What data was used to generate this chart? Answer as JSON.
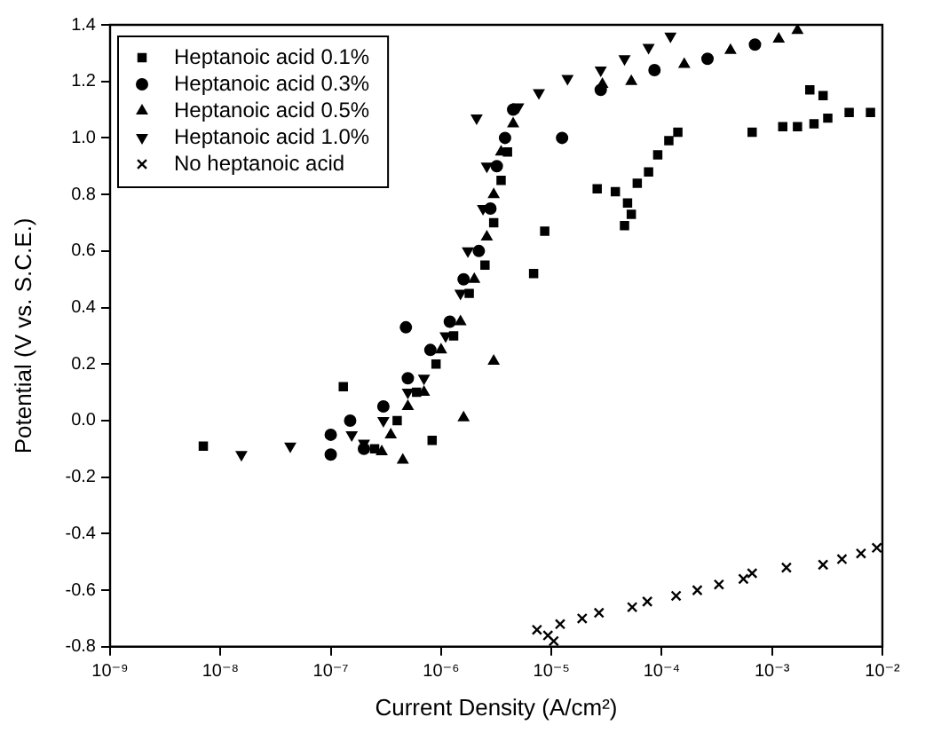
{
  "chart_data": {
    "type": "scatter",
    "xlabel": "Current Density (A/cm²)",
    "ylabel": "Potential (V vs. S.C.E.)",
    "log": "x",
    "xlim": [
      1e-09,
      0.01
    ],
    "xticks": [
      {
        "value": 1e-09,
        "label": "10⁻⁹"
      },
      {
        "value": 1e-08,
        "label": "10⁻⁸"
      },
      {
        "value": 1e-07,
        "label": "10⁻⁷"
      },
      {
        "value": 1e-06,
        "label": "10⁻⁶"
      },
      {
        "value": 1e-05,
        "label": "10⁻⁵"
      },
      {
        "value": 0.0001,
        "label": "10⁻⁴"
      },
      {
        "value": 0.001,
        "label": "10⁻³"
      },
      {
        "value": 0.01,
        "label": "10⁻²"
      }
    ],
    "ylim": [
      -0.8,
      1.4
    ],
    "yticks": [
      {
        "value": -0.8,
        "label": "-0.8"
      },
      {
        "value": -0.6,
        "label": "-0.6"
      },
      {
        "value": -0.4,
        "label": "-0.4"
      },
      {
        "value": -0.2,
        "label": "-0.2"
      },
      {
        "value": 0,
        "label": "0.0"
      },
      {
        "value": 0.2,
        "label": "0.2"
      },
      {
        "value": 0.4,
        "label": "0.4"
      },
      {
        "value": 0.6,
        "label": "0.6"
      },
      {
        "value": 0.8,
        "label": "0.8"
      },
      {
        "value": 1.0,
        "label": "1.0"
      },
      {
        "value": 1.2,
        "label": "1.2"
      },
      {
        "value": 1.4,
        "label": "1.4"
      }
    ],
    "grid": false,
    "legend": "top left",
    "series": [
      {
        "name": "Heptanoic acid 0.1%",
        "color": "#000000",
        "marker": "square",
        "x": [
          7e-09,
          1.3e-07,
          2.5e-07,
          4e-07,
          6e-07,
          8.3e-07,
          9e-07,
          1.3e-06,
          1.8e-06,
          2.5e-06,
          3e-06,
          3.5e-06,
          4e-06,
          6.9e-06,
          8.7e-06,
          2.6e-05,
          3.8e-05,
          4.9e-05,
          4.6e-05,
          5.3e-05,
          6e-05,
          7.6e-05,
          9.2e-05,
          0.000116,
          0.00014,
          0.00066,
          0.00125,
          0.0017,
          0.0024,
          0.0032,
          0.005,
          0.0078,
          0.0022,
          0.0029
        ],
        "values": [
          -0.09,
          0.12,
          -0.1,
          0.0,
          0.1,
          -0.07,
          0.2,
          0.3,
          0.45,
          0.55,
          0.7,
          0.85,
          0.95,
          0.52,
          0.67,
          0.82,
          0.81,
          0.77,
          0.69,
          0.73,
          0.84,
          0.88,
          0.94,
          0.99,
          1.02,
          1.02,
          1.04,
          1.04,
          1.05,
          1.07,
          1.09,
          1.09,
          1.17,
          1.15
        ]
      },
      {
        "name": "Heptanoic acid 0.3%",
        "color": "#000000",
        "marker": "circle",
        "x": [
          1e-07,
          1e-07,
          1.5e-07,
          2e-07,
          3e-07,
          4.8e-07,
          5e-07,
          8e-07,
          1.2e-06,
          1.6e-06,
          2.2e-06,
          2.8e-06,
          3.2e-06,
          3.8e-06,
          1.25e-05,
          4.5e-06,
          2.8e-05,
          8.6e-05,
          0.00026,
          0.0007
        ],
        "values": [
          -0.12,
          -0.05,
          0.0,
          -0.1,
          0.05,
          0.33,
          0.15,
          0.25,
          0.35,
          0.5,
          0.6,
          0.75,
          0.9,
          1.0,
          1.0,
          1.1,
          1.17,
          1.24,
          1.28,
          1.33
        ]
      },
      {
        "name": "Heptanoic acid 0.5%",
        "color": "#000000",
        "marker": "triangle",
        "x": [
          2.9e-07,
          4.5e-07,
          3.5e-07,
          5e-07,
          7e-07,
          1.6e-06,
          3e-06,
          1e-06,
          1.5e-06,
          2e-06,
          2.6e-06,
          3e-06,
          3.5e-06,
          4.5e-06,
          2.9e-05,
          5.3e-05,
          0.00016,
          0.00042,
          0.00115,
          0.0017
        ],
        "values": [
          -0.11,
          -0.14,
          -0.05,
          0.05,
          0.1,
          0.01,
          0.21,
          0.25,
          0.35,
          0.5,
          0.65,
          0.8,
          0.95,
          1.05,
          1.19,
          1.2,
          1.26,
          1.31,
          1.35,
          1.38
        ]
      },
      {
        "name": "Heptanoic acid 1.0%",
        "color": "#000000",
        "marker": "triangle-down",
        "x": [
          1.55e-08,
          4.3e-08,
          1.55e-07,
          2e-07,
          3e-07,
          5e-07,
          7e-07,
          1.1e-06,
          1.5e-06,
          1.75e-06,
          2.4e-06,
          2.6e-06,
          2.1e-06,
          5e-06,
          7.7e-06,
          1.4e-05,
          2.8e-05,
          4.6e-05,
          7.6e-05,
          0.00012
        ],
        "values": [
          -0.12,
          -0.09,
          -0.05,
          -0.08,
          0.0,
          0.1,
          0.15,
          0.3,
          0.45,
          0.6,
          0.75,
          0.9,
          1.07,
          1.11,
          1.16,
          1.21,
          1.24,
          1.28,
          1.32,
          1.36
        ]
      },
      {
        "name": "No heptanoic acid",
        "color": "#000000",
        "marker": "cross",
        "x": [
          7.4e-06,
          9.3e-06,
          1.05e-05,
          1.2e-05,
          1.9e-05,
          2.7e-05,
          5.4e-05,
          7.4e-05,
          0.000135,
          0.00021,
          0.00033,
          0.00055,
          0.00066,
          0.00135,
          0.0029,
          0.0043,
          0.0064,
          0.0089
        ],
        "values": [
          -0.74,
          -0.76,
          -0.78,
          -0.72,
          -0.7,
          -0.68,
          -0.66,
          -0.64,
          -0.62,
          -0.6,
          -0.58,
          -0.56,
          -0.54,
          -0.52,
          -0.51,
          -0.49,
          -0.47,
          -0.45
        ]
      }
    ]
  }
}
